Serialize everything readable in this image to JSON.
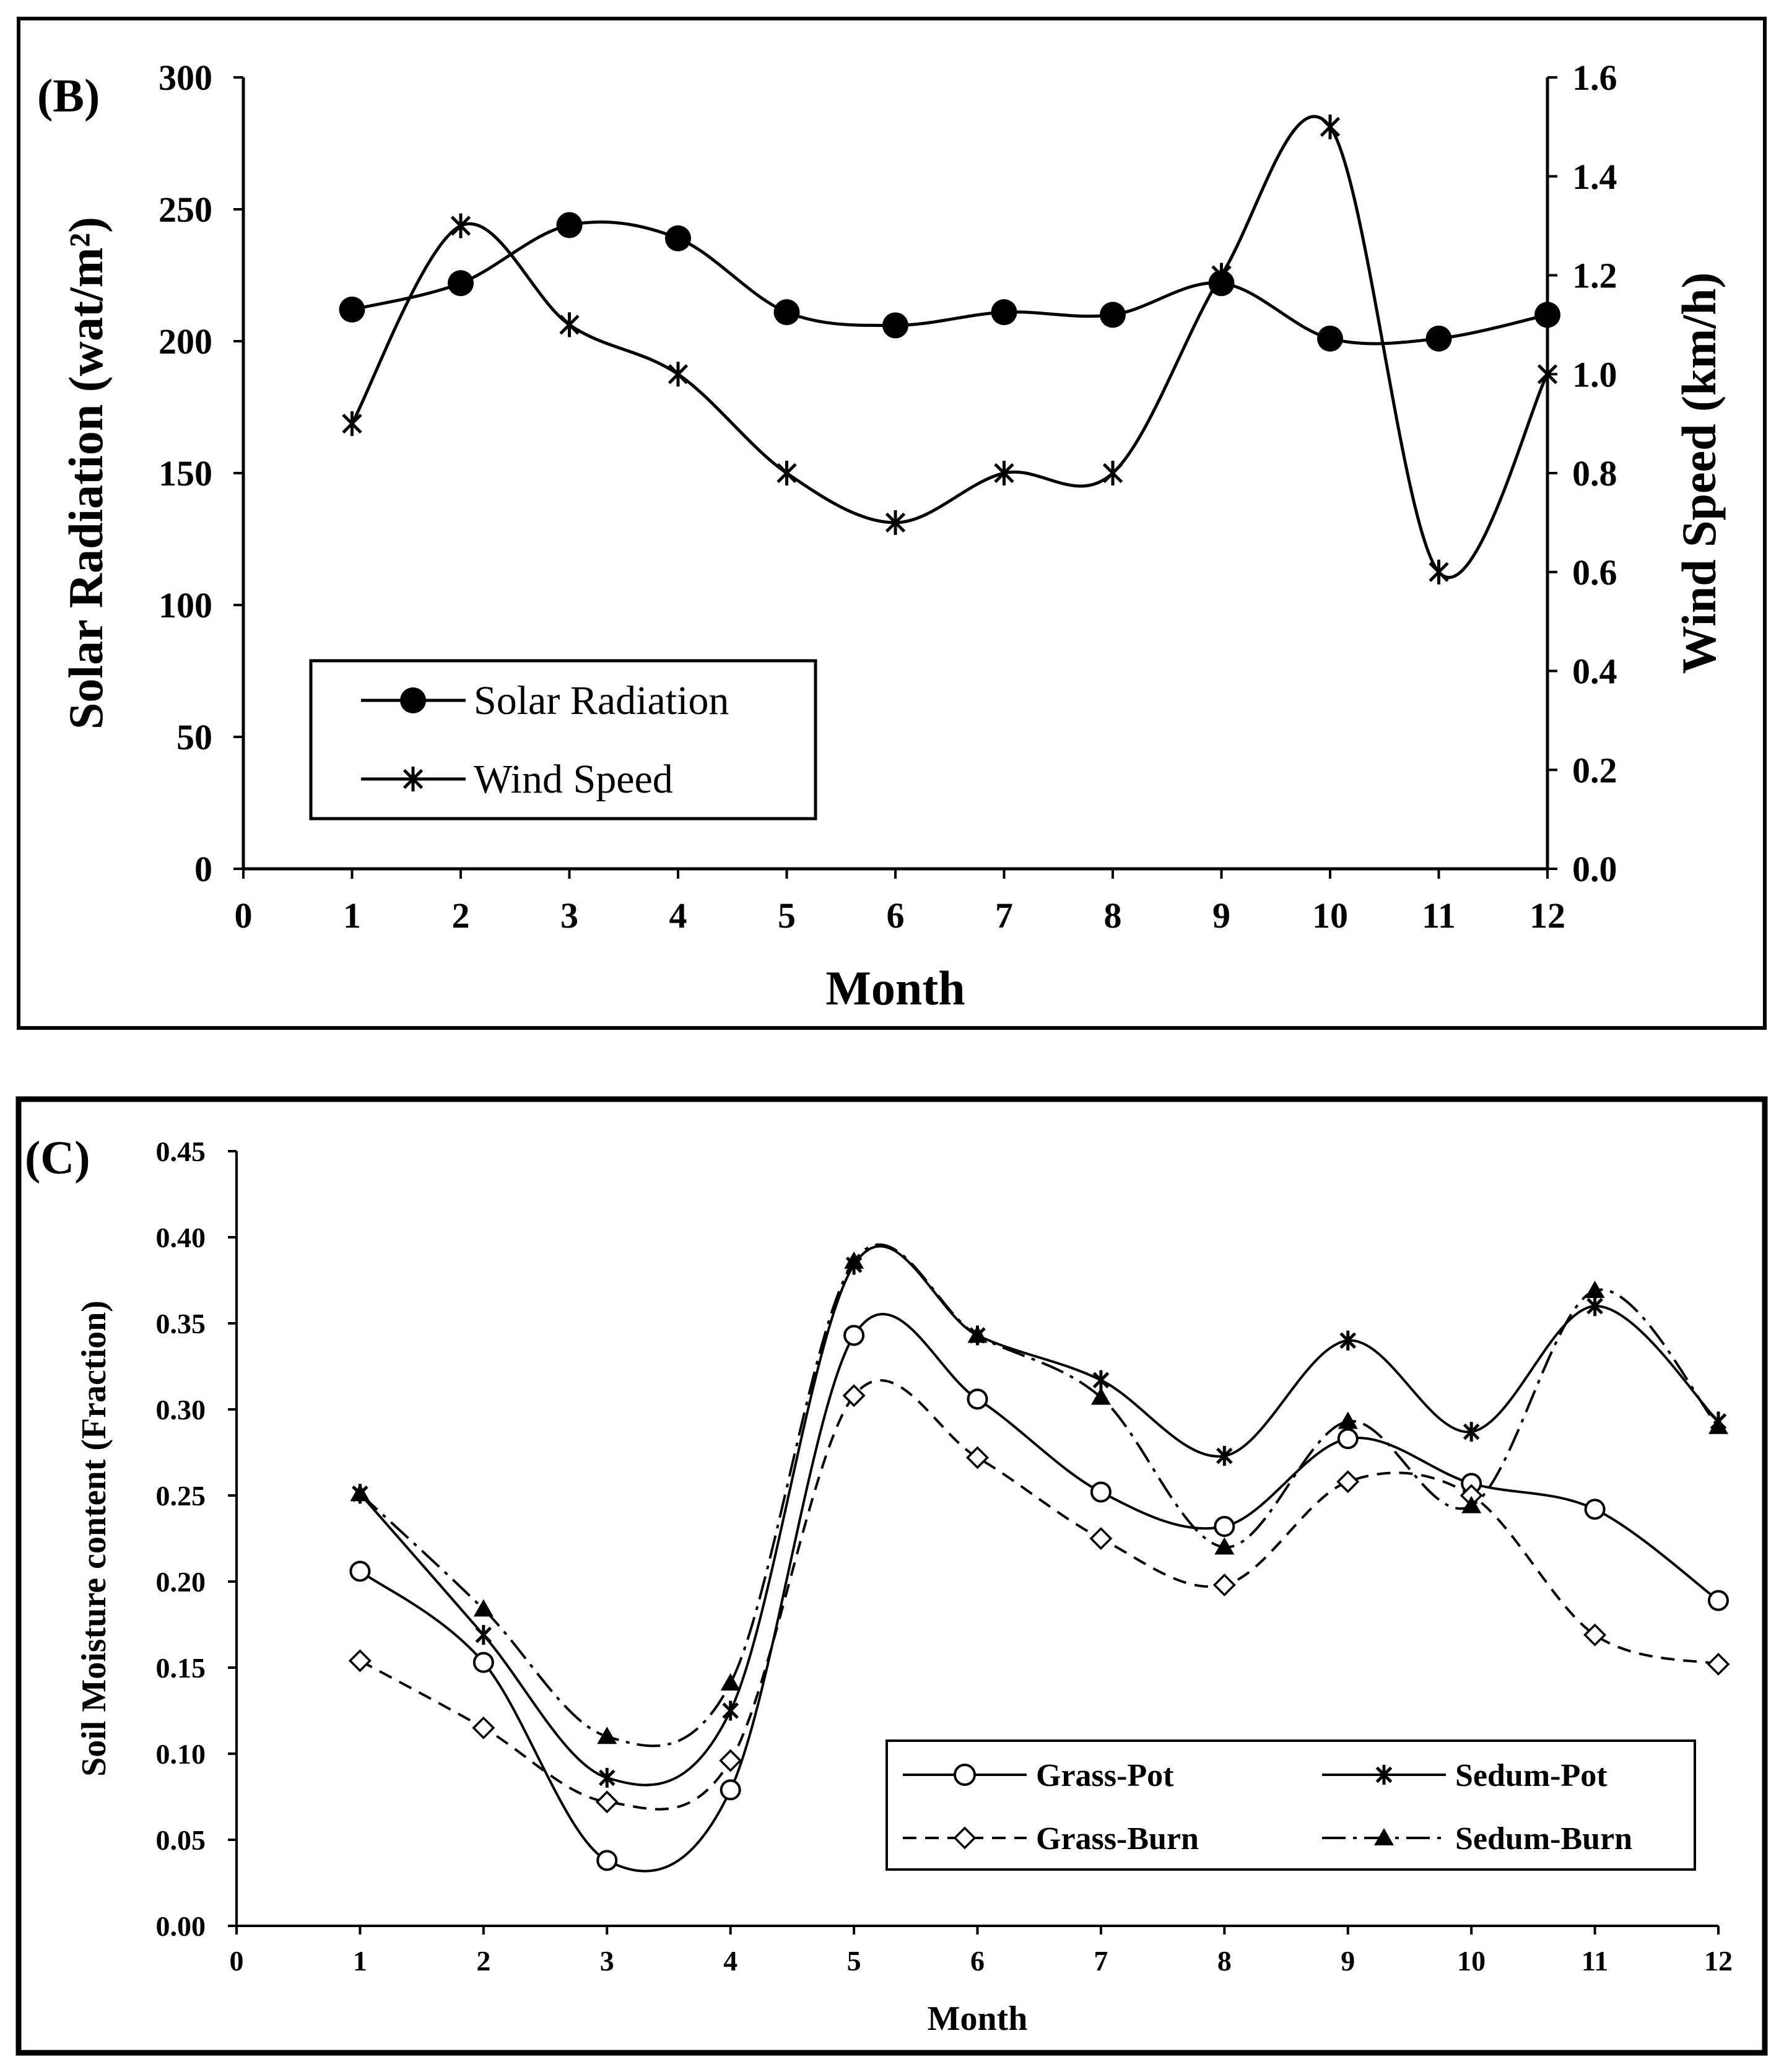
{
  "chart_data": [
    {
      "type": "line",
      "panel_label": "(B)",
      "xlabel": "Month",
      "ylabel": "Solar Radiation (wat/m²)",
      "y2label": "Wind Speed (km/h)",
      "xlim": [
        0,
        12
      ],
      "ylim": [
        0,
        300
      ],
      "y2lim": [
        0.0,
        1.6
      ],
      "x_ticks": [
        "0",
        "1",
        "2",
        "3",
        "4",
        "5",
        "6",
        "7",
        "8",
        "9",
        "10",
        "11",
        "12"
      ],
      "y_ticks": [
        "0",
        "50",
        "100",
        "150",
        "200",
        "250",
        "300"
      ],
      "y2_ticks": [
        "0.0",
        "0.2",
        "0.4",
        "0.6",
        "0.8",
        "1.0",
        "1.2",
        "1.4",
        "1.6"
      ],
      "x": [
        1,
        2,
        3,
        4,
        5,
        6,
        7,
        8,
        9,
        10,
        11,
        12
      ],
      "series": [
        {
          "name": "Solar Radiation",
          "axis": "left",
          "marker": "filled-circle",
          "values": [
            212,
            222,
            244,
            239,
            211,
            206,
            211,
            210,
            222,
            201,
            201,
            210
          ]
        },
        {
          "name": "Wind Speed",
          "axis": "right",
          "marker": "asterisk",
          "values": [
            0.9,
            1.3,
            1.1,
            1.0,
            0.8,
            0.7,
            0.8,
            0.8,
            1.2,
            1.5,
            0.6,
            1.0
          ]
        }
      ],
      "legend": {
        "position": "bottom-left",
        "entries": [
          "Solar Radiation",
          "Wind Speed"
        ]
      },
      "grid": false
    },
    {
      "type": "line",
      "panel_label": "(C)",
      "xlabel": "Month",
      "ylabel": "Soil Moisture content (Fraction)",
      "xlim": [
        0,
        12
      ],
      "ylim": [
        0.0,
        0.45
      ],
      "x_ticks": [
        "0",
        "1",
        "2",
        "3",
        "4",
        "5",
        "6",
        "7",
        "8",
        "9",
        "10",
        "11",
        "12"
      ],
      "y_ticks": [
        "0.00",
        "0.05",
        "0.10",
        "0.15",
        "0.20",
        "0.25",
        "0.30",
        "0.35",
        "0.40",
        "0.45"
      ],
      "x": [
        1,
        2,
        3,
        4,
        5,
        6,
        7,
        8,
        9,
        10,
        11,
        12
      ],
      "series": [
        {
          "name": "Grass-Pot",
          "marker": "open-circle",
          "line": "solid",
          "values": [
            0.206,
            0.153,
            0.038,
            0.079,
            0.343,
            0.306,
            0.252,
            0.232,
            0.283,
            0.257,
            0.242,
            0.189
          ]
        },
        {
          "name": "Sedum-Pot",
          "marker": "asterisk",
          "line": "solid",
          "values": [
            0.251,
            0.169,
            0.086,
            0.125,
            0.384,
            0.343,
            0.317,
            0.273,
            0.34,
            0.287,
            0.36,
            0.293
          ]
        },
        {
          "name": "Grass-Burn",
          "marker": "open-diamond",
          "line": "dashed",
          "values": [
            0.154,
            0.115,
            0.072,
            0.096,
            0.308,
            0.272,
            0.225,
            0.198,
            0.258,
            0.25,
            0.169,
            0.152
          ]
        },
        {
          "name": "Sedum-Burn",
          "marker": "filled-triangle",
          "line": "dash-dot",
          "values": [
            0.251,
            0.184,
            0.11,
            0.141,
            0.386,
            0.343,
            0.307,
            0.22,
            0.293,
            0.244,
            0.369,
            0.29
          ]
        }
      ],
      "legend": {
        "position": "bottom-right",
        "entries": [
          "Grass-Pot",
          "Sedum-Pot",
          "Grass-Burn",
          "Sedum-Burn"
        ]
      },
      "grid": false
    }
  ]
}
